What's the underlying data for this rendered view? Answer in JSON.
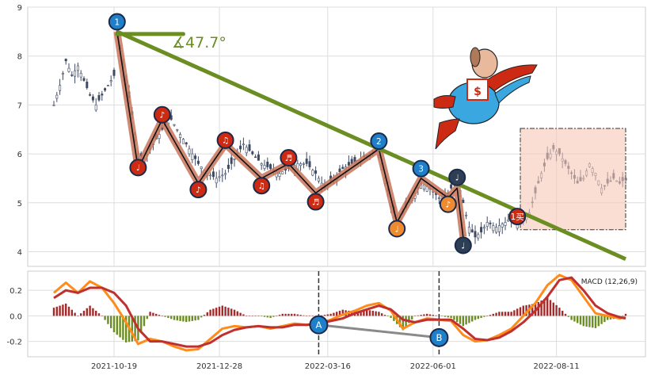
{
  "chart_data": [
    {
      "type": "candlestick",
      "panel": "price",
      "ylim": [
        3.7,
        9.0
      ],
      "yticks": [
        4,
        5,
        6,
        7,
        8,
        9
      ],
      "grid": true,
      "close_series": [
        [
          0,
          7.0
        ],
        [
          2,
          7.4
        ],
        [
          4,
          7.9
        ],
        [
          6,
          7.6
        ],
        [
          8,
          7.8
        ],
        [
          10,
          7.5
        ],
        [
          12,
          7.2
        ],
        [
          14,
          7.0
        ],
        [
          16,
          7.2
        ],
        [
          18,
          7.4
        ],
        [
          20,
          7.6
        ],
        [
          21,
          8.5
        ],
        [
          24,
          7.5
        ],
        [
          26,
          6.8
        ],
        [
          28,
          6.0
        ],
        [
          30,
          5.9
        ],
        [
          33,
          6.2
        ],
        [
          36,
          6.5
        ],
        [
          39,
          6.7
        ],
        [
          42,
          6.4
        ],
        [
          45,
          6.1
        ],
        [
          48,
          5.8
        ],
        [
          51,
          5.6
        ],
        [
          54,
          5.5
        ],
        [
          57,
          5.6
        ],
        [
          60,
          5.9
        ],
        [
          63,
          6.2
        ],
        [
          66,
          6.0
        ],
        [
          69,
          5.8
        ],
        [
          72,
          5.7
        ],
        [
          75,
          5.6
        ],
        [
          78,
          5.7
        ],
        [
          81,
          5.8
        ],
        [
          84,
          5.8
        ],
        [
          87,
          5.6
        ],
        [
          90,
          5.3
        ],
        [
          93,
          5.5
        ],
        [
          96,
          5.7
        ],
        [
          99,
          5.8
        ],
        [
          102,
          5.9
        ],
        [
          105,
          6.0
        ],
        [
          108,
          6.1
        ],
        [
          110,
          5.5
        ],
        [
          112,
          5.0
        ],
        [
          114,
          4.6
        ],
        [
          116,
          4.8
        ],
        [
          119,
          5.1
        ],
        [
          122,
          5.4
        ],
        [
          125,
          5.3
        ],
        [
          128,
          5.1
        ],
        [
          131,
          5.2
        ],
        [
          134,
          5.5
        ],
        [
          136,
          5.0
        ],
        [
          138,
          4.5
        ],
        [
          140,
          4.3
        ],
        [
          142,
          4.4
        ],
        [
          144,
          4.6
        ],
        [
          147,
          4.5
        ],
        [
          150,
          4.6
        ],
        [
          152,
          4.7
        ],
        [
          154,
          4.6
        ],
        [
          156,
          4.7
        ],
        [
          158,
          4.8
        ],
        [
          160,
          5.2
        ],
        [
          162,
          5.6
        ],
        [
          164,
          5.9
        ],
        [
          166,
          6.1
        ],
        [
          168,
          6.0
        ],
        [
          170,
          5.8
        ],
        [
          172,
          5.6
        ],
        [
          174,
          5.4
        ],
        [
          176,
          5.5
        ],
        [
          178,
          5.8
        ],
        [
          180,
          5.6
        ],
        [
          182,
          5.3
        ],
        [
          184,
          5.4
        ],
        [
          186,
          5.5
        ],
        [
          188,
          5.4
        ],
        [
          190,
          5.5
        ]
      ],
      "wave_path": [
        [
          21,
          8.5
        ],
        [
          28,
          5.7
        ],
        [
          36,
          6.7
        ],
        [
          48,
          5.4
        ],
        [
          57,
          6.2
        ],
        [
          69,
          5.5
        ],
        [
          78,
          5.8
        ],
        [
          87,
          5.2
        ],
        [
          108,
          6.1
        ],
        [
          114,
          4.6
        ],
        [
          122,
          5.5
        ],
        [
          131,
          5.1
        ],
        [
          134,
          5.3
        ],
        [
          136,
          4.3
        ]
      ],
      "trendline": {
        "from": [
          21,
          8.5
        ],
        "to": [
          190,
          3.85
        ]
      },
      "angle_line": {
        "from": [
          21,
          8.45
        ],
        "to": [
          43,
          8.45
        ]
      },
      "angle_label": "∡47.7°",
      "markers": [
        {
          "i": 21,
          "y": 8.7,
          "label": "1",
          "color": "#1f7fc8"
        },
        {
          "i": 28,
          "y": 5.72,
          "label": "♩",
          "color": "#cc2a12"
        },
        {
          "i": 36,
          "y": 6.8,
          "label": "♪",
          "color": "#cc2a12"
        },
        {
          "i": 48,
          "y": 5.27,
          "label": "♪",
          "color": "#cc2a12"
        },
        {
          "i": 57,
          "y": 6.28,
          "label": "♫",
          "color": "#cc2a12"
        },
        {
          "i": 69,
          "y": 5.35,
          "label": "♫",
          "color": "#cc2a12"
        },
        {
          "i": 78,
          "y": 5.92,
          "label": "♬",
          "color": "#cc2a12"
        },
        {
          "i": 87,
          "y": 5.02,
          "label": "♬",
          "color": "#cc2a12"
        },
        {
          "i": 108,
          "y": 6.26,
          "label": "2",
          "color": "#1f7fc8"
        },
        {
          "i": 114,
          "y": 4.47,
          "label": "♩",
          "color": "#ee8a30"
        },
        {
          "i": 122,
          "y": 5.7,
          "label": "3",
          "color": "#1f7fc8"
        },
        {
          "i": 131,
          "y": 4.97,
          "label": "♪",
          "color": "#ee8a30"
        },
        {
          "i": 134,
          "y": 5.52,
          "label": "♩",
          "color": "#2e3e55"
        },
        {
          "i": 136,
          "y": 4.13,
          "label": "♩",
          "color": "#2e3e55"
        },
        {
          "i": 154,
          "y": 4.72,
          "label": "1买",
          "color": "#cc2a12"
        }
      ],
      "forecast_box": {
        "from_i": 155,
        "to_i": 190,
        "y_top": 6.52,
        "y_bottom": 4.45
      }
    },
    {
      "type": "line",
      "panel": "macd",
      "legend": "MACD (12,26,9)",
      "ylim": [
        -0.32,
        0.35
      ],
      "yticks": [
        0.2,
        0.0,
        -0.2
      ],
      "grid": true,
      "x": [
        "2021-10-19",
        "2021-12-28",
        "2022-03-16",
        "2022-06-01",
        "2022-08-11"
      ],
      "dif": [
        [
          0,
          0.18
        ],
        [
          4,
          0.26
        ],
        [
          8,
          0.18
        ],
        [
          12,
          0.27
        ],
        [
          16,
          0.22
        ],
        [
          20,
          0.1
        ],
        [
          24,
          -0.05
        ],
        [
          28,
          -0.22
        ],
        [
          32,
          -0.18
        ],
        [
          36,
          -0.2
        ],
        [
          40,
          -0.24
        ],
        [
          44,
          -0.27
        ],
        [
          48,
          -0.26
        ],
        [
          52,
          -0.18
        ],
        [
          56,
          -0.1
        ],
        [
          60,
          -0.08
        ],
        [
          64,
          -0.09
        ],
        [
          68,
          -0.08
        ],
        [
          72,
          -0.1
        ],
        [
          76,
          -0.08
        ],
        [
          80,
          -0.06
        ],
        [
          84,
          -0.07
        ],
        [
          88,
          -0.06
        ],
        [
          92,
          -0.03
        ],
        [
          96,
          0.01
        ],
        [
          100,
          0.04
        ],
        [
          104,
          0.08
        ],
        [
          108,
          0.1
        ],
        [
          112,
          0.04
        ],
        [
          116,
          -0.1
        ],
        [
          120,
          -0.05
        ],
        [
          124,
          -0.02
        ],
        [
          128,
          -0.03
        ],
        [
          132,
          -0.04
        ],
        [
          136,
          -0.15
        ],
        [
          140,
          -0.2
        ],
        [
          144,
          -0.19
        ],
        [
          148,
          -0.15
        ],
        [
          152,
          -0.1
        ],
        [
          156,
          0.0
        ],
        [
          160,
          0.1
        ],
        [
          164,
          0.24
        ],
        [
          168,
          0.32
        ],
        [
          172,
          0.28
        ],
        [
          176,
          0.15
        ],
        [
          180,
          0.02
        ],
        [
          184,
          0.0
        ],
        [
          188,
          -0.02
        ],
        [
          190,
          -0.01
        ]
      ],
      "dea": [
        [
          0,
          0.14
        ],
        [
          4,
          0.2
        ],
        [
          8,
          0.18
        ],
        [
          12,
          0.22
        ],
        [
          16,
          0.22
        ],
        [
          20,
          0.18
        ],
        [
          24,
          0.08
        ],
        [
          28,
          -0.1
        ],
        [
          32,
          -0.2
        ],
        [
          36,
          -0.2
        ],
        [
          40,
          -0.22
        ],
        [
          44,
          -0.24
        ],
        [
          48,
          -0.24
        ],
        [
          52,
          -0.21
        ],
        [
          56,
          -0.15
        ],
        [
          60,
          -0.11
        ],
        [
          64,
          -0.09
        ],
        [
          68,
          -0.08
        ],
        [
          72,
          -0.09
        ],
        [
          76,
          -0.09
        ],
        [
          80,
          -0.07
        ],
        [
          84,
          -0.07
        ],
        [
          88,
          -0.06
        ],
        [
          92,
          -0.04
        ],
        [
          96,
          -0.02
        ],
        [
          100,
          0.02
        ],
        [
          104,
          0.05
        ],
        [
          108,
          0.08
        ],
        [
          112,
          0.05
        ],
        [
          116,
          -0.03
        ],
        [
          120,
          -0.05
        ],
        [
          124,
          -0.03
        ],
        [
          128,
          -0.03
        ],
        [
          132,
          -0.03
        ],
        [
          136,
          -0.1
        ],
        [
          140,
          -0.18
        ],
        [
          144,
          -0.19
        ],
        [
          148,
          -0.17
        ],
        [
          152,
          -0.12
        ],
        [
          156,
          -0.05
        ],
        [
          160,
          0.04
        ],
        [
          164,
          0.15
        ],
        [
          168,
          0.28
        ],
        [
          172,
          0.3
        ],
        [
          176,
          0.2
        ],
        [
          180,
          0.08
        ],
        [
          184,
          0.02
        ],
        [
          188,
          -0.01
        ],
        [
          190,
          -0.02
        ]
      ],
      "markers": [
        {
          "i": 88,
          "y": -0.07,
          "label": "A",
          "color": "#1f7fc8"
        },
        {
          "i": 128,
          "y": -0.17,
          "label": "B",
          "color": "#1f7fc8"
        }
      ],
      "vlines": [
        88,
        128
      ]
    }
  ],
  "x_total": 190,
  "x_tick_positions": [
    20,
    55,
    91,
    126,
    167
  ]
}
